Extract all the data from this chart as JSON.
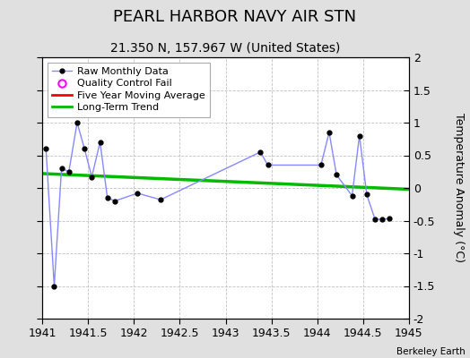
{
  "title": "PEARL HARBOR NAVY AIR STN",
  "subtitle": "21.350 N, 157.967 W (United States)",
  "ylabel": "Temperature Anomaly (°C)",
  "attribution": "Berkeley Earth",
  "xlim": [
    1941.0,
    1945.0
  ],
  "ylim": [
    -2.0,
    2.0
  ],
  "xticks": [
    1941,
    1941.5,
    1942,
    1942.5,
    1943,
    1943.5,
    1944,
    1944.5,
    1945
  ],
  "yticks": [
    -2,
    -1.5,
    -1,
    -0.5,
    0,
    0.5,
    1,
    1.5,
    2
  ],
  "raw_x": [
    1941.04,
    1941.13,
    1941.21,
    1941.29,
    1941.38,
    1941.46,
    1941.54,
    1941.63,
    1941.71,
    1941.79,
    1942.04,
    1942.29,
    1943.38,
    1943.46,
    1944.04,
    1944.13,
    1944.21,
    1944.38,
    1944.46,
    1944.54,
    1944.63,
    1944.71,
    1944.79
  ],
  "raw_y": [
    0.6,
    -1.5,
    0.3,
    0.25,
    1.0,
    0.6,
    0.17,
    0.7,
    -0.15,
    -0.2,
    -0.08,
    -0.18,
    0.55,
    0.35,
    0.35,
    0.85,
    0.2,
    -0.12,
    0.8,
    -0.1,
    -0.48,
    -0.48,
    -0.47
  ],
  "raw_line_color": "#8888ff",
  "raw_marker_color": "#000000",
  "raw_markersize": 3.5,
  "raw_linewidth": 1.0,
  "trend_x": [
    1941.0,
    1945.0
  ],
  "trend_y": [
    0.22,
    -0.02
  ],
  "trend_color": "#00bb00",
  "trend_linewidth": 2.5,
  "legend_raw_label": "Raw Monthly Data",
  "legend_qc_label": "Quality Control Fail",
  "legend_ma_label": "Five Year Moving Average",
  "legend_trend_label": "Long-Term Trend",
  "bg_color": "#e0e0e0",
  "plot_bg_color": "#ffffff",
  "grid_color": "#c0c0c0",
  "title_fontsize": 13,
  "subtitle_fontsize": 10,
  "tick_fontsize": 9,
  "ylabel_fontsize": 9
}
